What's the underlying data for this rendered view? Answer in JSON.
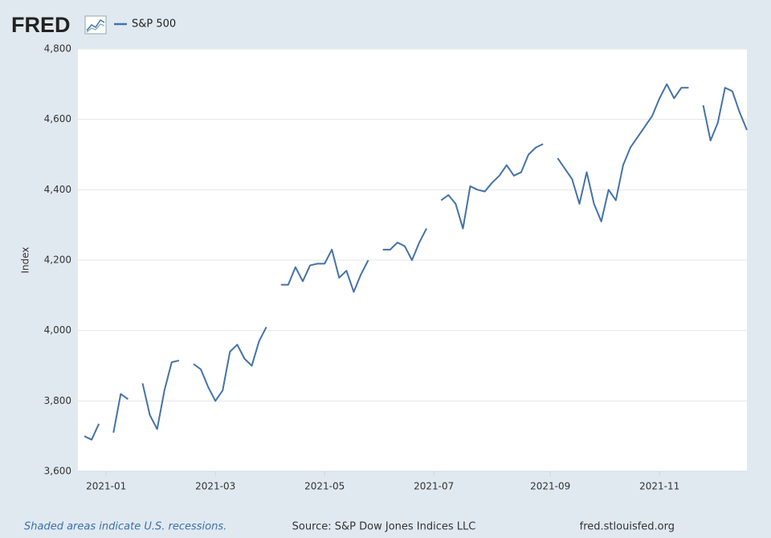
{
  "logo": "FRED",
  "footer": {
    "note": "Shaded areas indicate U.S. recessions.",
    "source": "Source: S&P Dow Jones Indices LLC",
    "site": "fred.stlouisfed.org"
  },
  "chart_data": {
    "type": "line",
    "y_label": "Index",
    "categories": [
      null,
      null,
      null,
      "2021-01",
      null,
      null,
      null,
      null,
      null,
      null,
      null,
      null,
      null,
      null,
      null,
      null,
      null,
      null,
      "2021-03",
      null,
      null,
      null,
      null,
      null,
      null,
      null,
      null,
      null,
      null,
      null,
      null,
      null,
      null,
      "2021-05",
      null,
      null,
      null,
      null,
      null,
      null,
      null,
      null,
      null,
      null,
      null,
      null,
      null,
      null,
      "2021-07",
      null,
      null,
      null,
      null,
      null,
      null,
      null,
      null,
      null,
      null,
      null,
      null,
      null,
      null,
      null,
      "2021-09",
      null,
      null,
      null,
      null,
      null,
      null,
      null,
      null,
      null,
      null,
      null,
      null,
      null,
      null,
      "2021-11",
      null,
      null,
      null,
      null,
      null,
      null,
      null,
      null,
      null,
      null,
      null,
      null
    ],
    "series": [
      {
        "name": "S&P 500",
        "color": "#4572a7",
        "values": [
          3700,
          3690,
          3735,
          null,
          3710,
          3820,
          3805,
          null,
          3850,
          3760,
          3720,
          3830,
          3910,
          3915,
          null,
          3905,
          3890,
          3840,
          3800,
          3830,
          3940,
          3960,
          3920,
          3900,
          3970,
          4010,
          null,
          4130,
          4130,
          4180,
          4140,
          4185,
          4190,
          4190,
          4230,
          4150,
          4170,
          4110,
          4160,
          4200,
          null,
          4230,
          4230,
          4250,
          4240,
          4200,
          4250,
          4290,
          null,
          4370,
          4385,
          4360,
          4290,
          4410,
          4400,
          4395,
          4420,
          4440,
          4470,
          4440,
          4450,
          4500,
          4520,
          4530,
          null,
          4490,
          4460,
          4430,
          4360,
          4450,
          4360,
          4310,
          4400,
          4370,
          4470,
          4520,
          4550,
          4580,
          4610,
          4660,
          4700,
          4660,
          4690,
          4690,
          null,
          4640,
          4540,
          4590,
          4690,
          4680,
          4620,
          4570
        ]
      }
    ],
    "ylim": [
      3600,
      4800
    ],
    "yticks": [
      {
        "value": 3600,
        "label": "3,600"
      },
      {
        "value": 3800,
        "label": "3,800"
      },
      {
        "value": 4000,
        "label": "4,000"
      },
      {
        "value": 4200,
        "label": "4,200"
      },
      {
        "value": 4400,
        "label": "4,400"
      },
      {
        "value": 4600,
        "label": "4,600"
      },
      {
        "value": 4800,
        "label": "4,800"
      }
    ],
    "grid": true
  }
}
